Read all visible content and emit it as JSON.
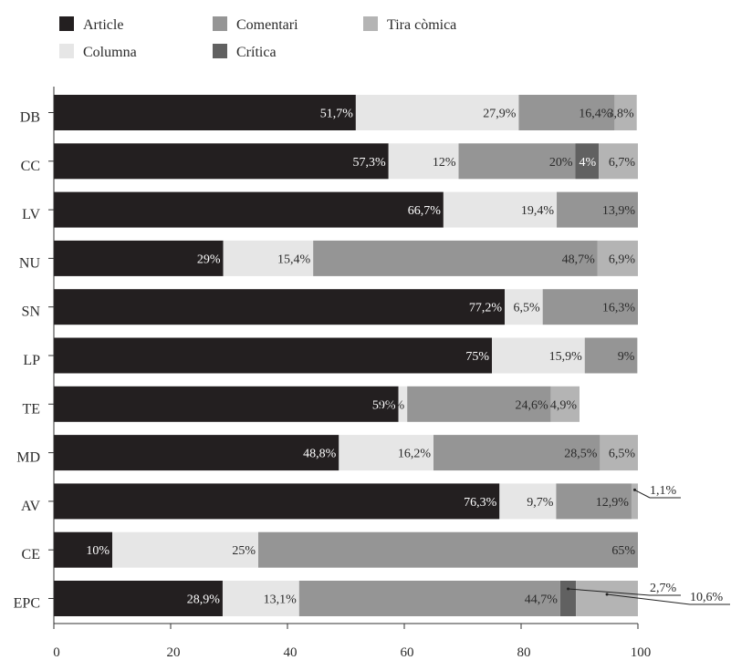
{
  "colors": {
    "Article": "#231f20",
    "Columna": "#e6e6e6",
    "Comentari": "#959595",
    "Crítica": "#616161",
    "Tira còmica": "#b4b4b4"
  },
  "chart_data": {
    "type": "bar",
    "orientation": "horizontal",
    "stacked": true,
    "title": "",
    "xlabel": "",
    "ylabel": "",
    "xlim": [
      0,
      100
    ],
    "xticks": [
      0,
      20,
      40,
      60,
      80,
      100
    ],
    "legend": {
      "placement": "top-left",
      "entries": [
        "Article",
        "Comentari",
        "Tira còmica",
        "Columna",
        "Crítica"
      ]
    },
    "categories": [
      "DB",
      "CC",
      "LV",
      "NU",
      "SN",
      "LP",
      "TE",
      "MD",
      "AV",
      "CE",
      "EPC"
    ],
    "series": [
      {
        "name": "Article",
        "values": [
          51.7,
          57.3,
          66.7,
          29,
          77.2,
          75,
          59,
          48.8,
          76.3,
          10,
          28.9
        ],
        "labels": [
          "51,7%",
          "57,3%",
          "66,7%",
          "29%",
          "77,2%",
          "75%",
          "59%",
          "48,8%",
          "76,3%",
          "10%",
          "28,9%"
        ]
      },
      {
        "name": "Columna",
        "values": [
          27.9,
          12,
          19.4,
          15.4,
          6.5,
          15.9,
          1.5,
          16.2,
          9.7,
          25,
          13.1
        ],
        "labels": [
          "27,9%",
          "12%",
          "19,4%",
          "15,4%",
          "6,5%",
          "15,9%",
          "1,5%",
          "16,2%",
          "9,7%",
          "25%",
          "13,1%"
        ]
      },
      {
        "name": "Comentari",
        "values": [
          16.4,
          20,
          13.9,
          48.7,
          16.3,
          9,
          24.6,
          28.5,
          12.9,
          65,
          44.7
        ],
        "labels": [
          "16,4%",
          "20%",
          "13,9%",
          "48,7%",
          "16,3%",
          "9%",
          "24,6%",
          "28,5%",
          "12,9%",
          "65%",
          "44,7%"
        ]
      },
      {
        "name": "Crítica",
        "values": [
          0,
          4,
          0,
          0,
          0,
          0,
          0,
          0,
          0,
          0,
          2.7
        ],
        "labels": [
          "",
          "4%",
          "",
          "",
          "",
          "",
          "",
          "",
          "",
          "",
          "2,7%"
        ]
      },
      {
        "name": "Tira còmica",
        "values": [
          3.8,
          6.7,
          0,
          6.9,
          0,
          0,
          4.9,
          6.5,
          1.1,
          0,
          10.6
        ],
        "labels": [
          "3,8%",
          "6,7%",
          "",
          "6,9%",
          "",
          "",
          "4,9%",
          "6,5%",
          "1,1%",
          "",
          "10,6%"
        ]
      }
    ],
    "callouts": [
      {
        "category": "AV",
        "series": "Tira còmica",
        "label": "1,1%"
      },
      {
        "category": "EPC",
        "series": "Crítica",
        "label": "2,7%"
      },
      {
        "category": "EPC",
        "series": "Tira còmica",
        "label": "10,6%"
      }
    ]
  }
}
